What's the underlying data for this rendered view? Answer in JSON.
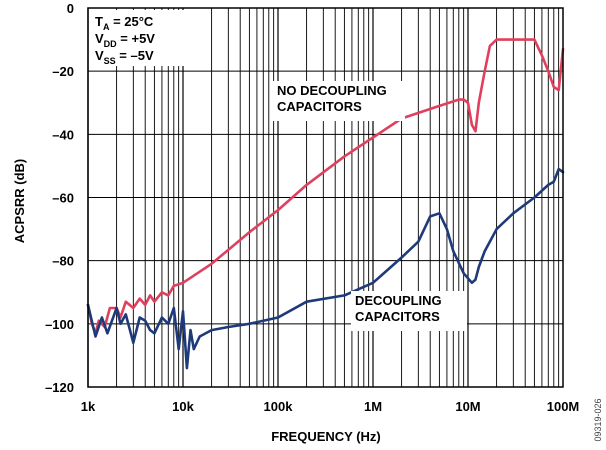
{
  "chart_data": {
    "type": "line",
    "xlabel": "FREQUENCY (Hz)",
    "ylabel": "ACPSRR (dB)",
    "x_scale": "log",
    "xlim": [
      "1k",
      "100M"
    ],
    "ylim": [
      -120,
      0
    ],
    "grid": true,
    "x_ticks": [
      "1k",
      "10k",
      "100k",
      "1M",
      "10M",
      "100M"
    ],
    "y_ticks": [
      "0",
      "–20",
      "–40",
      "–60",
      "–80",
      "–100",
      "–120"
    ],
    "conditions": [
      {
        "main": "T",
        "sub": "A",
        "rest": " = 25°C"
      },
      {
        "main": "V",
        "sub": "DD",
        "rest": " = +5V"
      },
      {
        "main": "V",
        "sub": "SS",
        "rest": " = –5V"
      }
    ],
    "annotations": [
      {
        "lines": [
          "NO DECOUPLING",
          "CAPACITORS"
        ]
      },
      {
        "lines": [
          "DECOUPLING",
          "CAPACITORS"
        ]
      }
    ],
    "figure_id": "09319-026",
    "series": [
      {
        "label": "NO DECOUPLING CAPACITORS",
        "color": "#e0405e",
        "x": [
          "1k",
          "1.1k",
          "1.2k",
          "1.3k",
          "1.5k",
          "1.7k",
          "2k",
          "2.2k",
          "2.5k",
          "3k",
          "3.5k",
          "4k",
          "4.5k",
          "5k",
          "6k",
          "7k",
          "8k",
          "10k",
          "20k",
          "50k",
          "100k",
          "200k",
          "500k",
          "1M",
          "2M",
          "5M",
          "8M",
          "9M",
          "10M",
          "11M",
          "12M",
          "13M",
          "15M",
          "17M",
          "20M",
          "30M",
          "50M",
          "60M",
          "70M",
          "80M",
          "90M",
          "100M"
        ],
        "y": [
          -94,
          -100,
          -103,
          -99,
          -101,
          -95,
          -95,
          -98,
          -93,
          -95,
          -92,
          -94,
          -91,
          -93,
          -90,
          -91,
          -88,
          -87,
          -81,
          -71,
          -64,
          -56,
          -47,
          -41,
          -35,
          -31,
          -29,
          -29,
          -30,
          -37,
          -39,
          -30,
          -20,
          -12,
          -10,
          -10,
          -10,
          -15,
          -20,
          -25,
          -26,
          -13
        ]
      },
      {
        "label": "DECOUPLING CAPACITORS",
        "color": "#1f3a7a",
        "x": [
          "1k",
          "1.2k",
          "1.4k",
          "1.6k",
          "2k",
          "2.2k",
          "2.5k",
          "3k",
          "3.5k",
          "4k",
          "4.5k",
          "5k",
          "6k",
          "7k",
          "8k",
          "9k",
          "10k",
          "11k",
          "12k",
          "13k",
          "15k",
          "20k",
          "30k",
          "50k",
          "100k",
          "200k",
          "500k",
          "1M",
          "2M",
          "3M",
          "4M",
          "5M",
          "6M",
          "7M",
          "9M",
          "11M",
          "12M",
          "13M",
          "15M",
          "20M",
          "30M",
          "50M",
          "70M",
          "80M",
          "90M",
          "100M"
        ],
        "y": [
          -94,
          -104,
          -98,
          -103,
          -95,
          -100,
          -97,
          -106,
          -98,
          -99,
          -102,
          -103,
          -98,
          -100,
          -95,
          -108,
          -96,
          -114,
          -102,
          -108,
          -104,
          -102,
          -101,
          -100,
          -98,
          -93,
          -91,
          -87,
          -79,
          -74,
          -66,
          -65,
          -70,
          -77,
          -84,
          -87,
          -86,
          -82,
          -77,
          -70,
          -65,
          -60,
          -56,
          -55,
          -51,
          -52
        ]
      }
    ]
  }
}
